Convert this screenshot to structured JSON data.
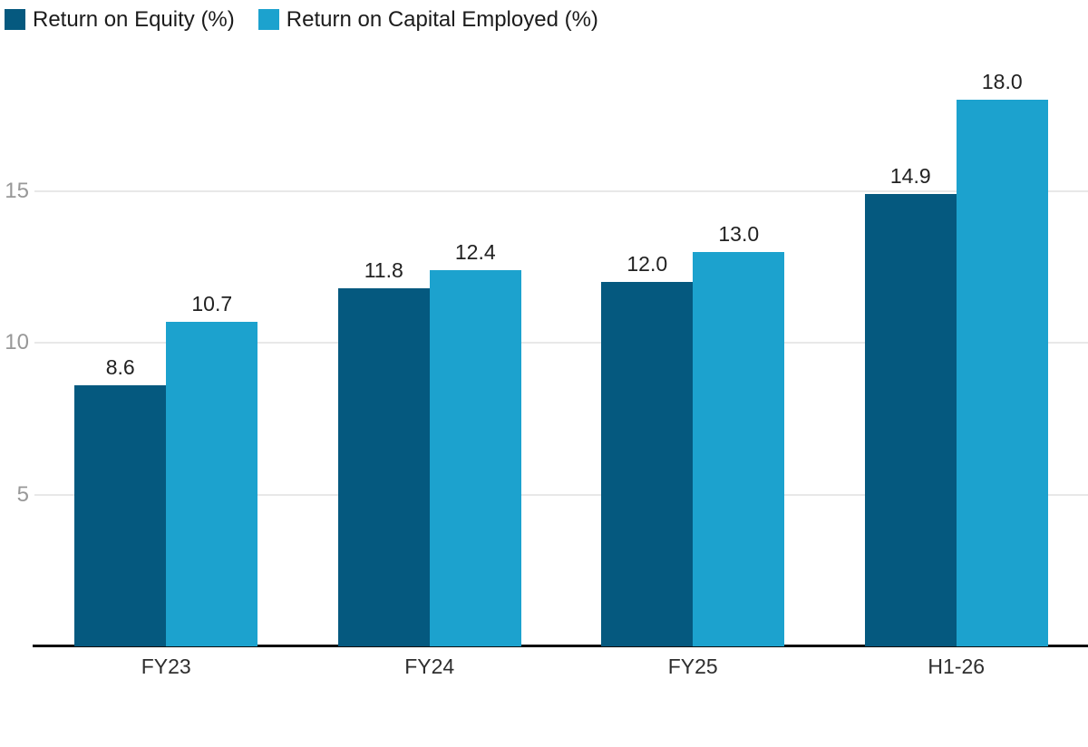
{
  "chart_data": {
    "type": "bar",
    "title": "",
    "categories": [
      "FY23",
      "FY24",
      "FY25",
      "H1-26"
    ],
    "series": [
      {
        "name": "Return on Equity (%)",
        "color": "#05597f",
        "values": [
          8.6,
          11.8,
          12.0,
          14.9
        ]
      },
      {
        "name": "Return on Capital Employed (%)",
        "color": "#1ca2ce",
        "values": [
          10.7,
          12.4,
          13.0,
          18.0
        ]
      }
    ],
    "value_labels": [
      "8.6",
      "11.8",
      "12.0",
      "14.9",
      "10.7",
      "12.4",
      "13.0",
      "18.0"
    ],
    "yticks": [
      5,
      10,
      15
    ],
    "ylim": [
      0,
      18.6
    ],
    "grid": "horizontal",
    "legend_position": "top-left",
    "xlabel": "",
    "ylabel": "",
    "colors": {
      "grid": "#e8e8e8",
      "axis": "#0d0d0d",
      "tick_label": "#989898",
      "category_label": "#2e2e2e",
      "value_label": "#212121",
      "legend_label": "#1c1c1c",
      "background": "#ffffff"
    }
  }
}
